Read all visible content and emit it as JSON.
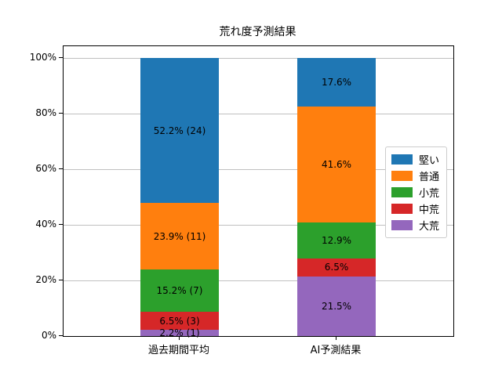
{
  "chart_data": {
    "type": "bar",
    "stacked": true,
    "title": "荒れ度予測結果",
    "categories": [
      "過去期間平均",
      "AI予測結果"
    ],
    "series": [
      {
        "name": "堅い",
        "color": "#1f77b4",
        "values": [
          52.2,
          17.6
        ],
        "labels": [
          "52.2% (24)",
          "17.6%"
        ]
      },
      {
        "name": "普通",
        "color": "#ff7f0e",
        "values": [
          23.9,
          41.6
        ],
        "labels": [
          "23.9% (11)",
          "41.6%"
        ]
      },
      {
        "name": "小荒",
        "color": "#2ca02c",
        "values": [
          15.2,
          12.9
        ],
        "labels": [
          "15.2% (7)",
          "12.9%"
        ]
      },
      {
        "name": "中荒",
        "color": "#d62728",
        "values": [
          6.5,
          6.5
        ],
        "labels": [
          "6.5% (3)",
          "6.5%"
        ]
      },
      {
        "name": "大荒",
        "color": "#9467bd",
        "values": [
          2.2,
          21.5
        ],
        "labels": [
          "2.2% (1)",
          "21.5%"
        ]
      }
    ],
    "first_bar_counts": [
      24,
      11,
      7,
      3,
      1
    ],
    "ytick_labels": [
      "0%",
      "20%",
      "40%",
      "60%",
      "80%",
      "100%"
    ],
    "ytick_values": [
      0,
      20,
      40,
      60,
      80,
      100
    ],
    "ylim": [
      0,
      100
    ],
    "grid": "horizontal",
    "legend_position": "right-inside",
    "legend_order": [
      "堅い",
      "普通",
      "小荒",
      "中荒",
      "大荒"
    ]
  }
}
